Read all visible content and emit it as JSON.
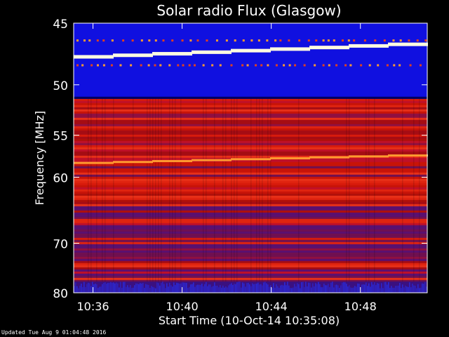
{
  "chart_data": {
    "type": "heatmap",
    "title": "Solar radio Flux (Glasgow)",
    "xlabel": "Start Time (10-Oct-14 10:35:08)",
    "ylabel": "Frequency [MHz]",
    "x_range": [
      "10:35:08",
      "10:51:00"
    ],
    "x_ticks": [
      "10:36",
      "10:40",
      "10:44",
      "10:48"
    ],
    "y_range": [
      45,
      80
    ],
    "y_ticks": [
      45,
      50,
      55,
      60,
      70,
      80
    ],
    "y_tick_labels": [
      "45",
      "50",
      "55",
      "60",
      "70",
      "80"
    ],
    "y_scale": "inverse",
    "colormap": "blue-red-yellow-white",
    "features": [
      {
        "kind": "bright_band",
        "freq_mhz": [
          47.6,
          46.6
        ],
        "color": "#fffbe0"
      },
      {
        "kind": "blue_band",
        "freq_mhz": [
          45,
          51.3
        ],
        "color": "#1010e0"
      },
      {
        "kind": "red_region",
        "freq_mhz": [
          51.3,
          78
        ],
        "color": "#d81b0c"
      },
      {
        "kind": "orange_line",
        "freq_mhz": [
          58.2,
          57.3
        ],
        "color": "#ff9a30"
      },
      {
        "kind": "blue_noise",
        "freq_mhz": [
          77.5,
          80
        ],
        "color": "#2a2ad8"
      }
    ]
  },
  "footer_text": "Updated Tue Aug  9 01:04:48 2016"
}
